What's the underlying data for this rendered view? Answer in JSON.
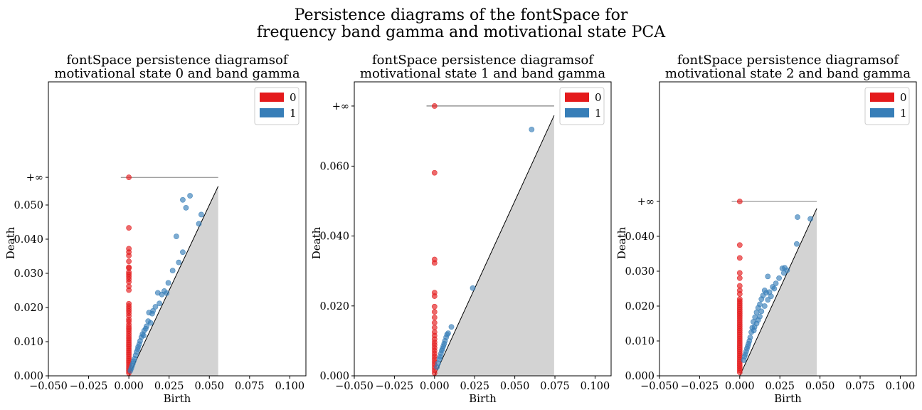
{
  "figure": {
    "title_line1": "Persistence diagrams of the fontSpace for",
    "title_line2": "frequency band gamma and motivational state PCA"
  },
  "chart_data": [
    {
      "type": "scatter",
      "title_line1": "fontSpace persistence diagramsof",
      "title_line2": "motivational state 0 and band gamma",
      "xlabel": "Birth",
      "ylabel": "Death",
      "xlim": [
        -0.05,
        0.11
      ],
      "x_ticks": [
        "−0.050",
        "−0.025",
        "0.000",
        "0.025",
        "0.050",
        "0.075",
        "0.100"
      ],
      "y_ticks": [
        "0.000",
        "0.010",
        "0.020",
        "0.030",
        "0.040",
        "0.050"
      ],
      "inf_label": "+∞",
      "inf_value": 0.0581,
      "diag_max": 0.0555,
      "legend": [
        "0",
        "1"
      ],
      "legend_position": "top-right",
      "grid": false,
      "colors": {
        "h0": "#e41a1c",
        "h1": "#377eb8"
      },
      "series": [
        {
          "name": "0",
          "infinite_births": [
            0.0
          ],
          "points": [
            [
              0,
              0.0433
            ],
            [
              0,
              0.0372
            ],
            [
              0,
              0.0362
            ],
            [
              0,
              0.0352
            ],
            [
              0,
              0.0335
            ],
            [
              0,
              0.0318
            ],
            [
              0,
              0.0315
            ],
            [
              0,
              0.0303
            ],
            [
              0,
              0.0297
            ],
            [
              0,
              0.029
            ],
            [
              0,
              0.0283
            ],
            [
              0,
              0.0275
            ],
            [
              0,
              0.0262
            ],
            [
              0,
              0.0251
            ],
            [
              0,
              0.0211
            ],
            [
              0,
              0.0204
            ],
            [
              0,
              0.0197
            ],
            [
              0,
              0.019
            ],
            [
              0,
              0.0183
            ],
            [
              0,
              0.0175
            ],
            [
              0,
              0.0165
            ],
            [
              0,
              0.0159
            ],
            [
              0,
              0.015
            ],
            [
              0,
              0.0143
            ],
            [
              0,
              0.0137
            ],
            [
              0,
              0.0131
            ],
            [
              0,
              0.0124
            ],
            [
              0,
              0.0117
            ],
            [
              0,
              0.011
            ],
            [
              0,
              0.0104
            ],
            [
              0,
              0.0098
            ],
            [
              0,
              0.0092
            ],
            [
              0,
              0.0086
            ],
            [
              0,
              0.008
            ],
            [
              0,
              0.0074
            ],
            [
              0,
              0.0068
            ],
            [
              0,
              0.0062
            ],
            [
              0,
              0.0056
            ],
            [
              0,
              0.005
            ],
            [
              0,
              0.0044
            ],
            [
              0,
              0.0038
            ],
            [
              0,
              0.0032
            ],
            [
              0,
              0.0026
            ],
            [
              0,
              0.002
            ],
            [
              0,
              0.0014
            ],
            [
              0,
              0.0008
            ]
          ]
        },
        {
          "name": "1",
          "points": [
            [
              0.038,
              0.0527
            ],
            [
              0.0335,
              0.0515
            ],
            [
              0.0355,
              0.0492
            ],
            [
              0.045,
              0.0472
            ],
            [
              0.0435,
              0.0445
            ],
            [
              0.0295,
              0.0408
            ],
            [
              0.0335,
              0.0362
            ],
            [
              0.031,
              0.0332
            ],
            [
              0.0272,
              0.0308
            ],
            [
              0.0245,
              0.0272
            ],
            [
              0.022,
              0.0248
            ],
            [
              0.018,
              0.0243
            ],
            [
              0.0235,
              0.0242
            ],
            [
              0.0205,
              0.0238
            ],
            [
              0.019,
              0.0212
            ],
            [
              0.0165,
              0.0202
            ],
            [
              0.015,
              0.019
            ],
            [
              0.0145,
              0.0182
            ],
            [
              0.0125,
              0.0185
            ],
            [
              0.012,
              0.016
            ],
            [
              0.0135,
              0.0155
            ],
            [
              0.011,
              0.0145
            ],
            [
              0.0095,
              0.0132
            ],
            [
              0.0105,
              0.0138
            ],
            [
              0.0085,
              0.0122
            ],
            [
              0.0078,
              0.0113
            ],
            [
              0.0092,
              0.0118
            ],
            [
              0.007,
              0.0102
            ],
            [
              0.0065,
              0.0093
            ],
            [
              0.0058,
              0.0085
            ],
            [
              0.0055,
              0.0078
            ],
            [
              0.0048,
              0.007
            ],
            [
              0.0042,
              0.006
            ],
            [
              0.0035,
              0.005
            ],
            [
              0.003,
              0.0043
            ],
            [
              0.0025,
              0.0036
            ],
            [
              0.002,
              0.0029
            ],
            [
              0.0015,
              0.0022
            ],
            [
              0.001,
              0.0015
            ]
          ]
        }
      ]
    },
    {
      "type": "scatter",
      "title_line1": "fontSpace persistence diagramsof",
      "title_line2": "motivational state 1 and band gamma",
      "xlabel": "Birth",
      "ylabel": "Death",
      "xlim": [
        -0.05,
        0.11
      ],
      "x_ticks": [
        "−0.050",
        "−0.025",
        "0.000",
        "0.025",
        "0.050",
        "0.075",
        "0.100"
      ],
      "y_ticks": [
        "0.000",
        "0.020",
        "0.040",
        "0.060"
      ],
      "inf_label": "+∞",
      "inf_value": 0.0772,
      "diag_max": 0.0745,
      "legend": [
        "0",
        "1"
      ],
      "legend_position": "top-right",
      "grid": false,
      "colors": {
        "h0": "#e41a1c",
        "h1": "#377eb8"
      },
      "series": [
        {
          "name": "0",
          "infinite_births": [
            0.0
          ],
          "points": [
            [
              0,
              0.0581
            ],
            [
              0,
              0.0333
            ],
            [
              0,
              0.0323
            ],
            [
              0,
              0.0238
            ],
            [
              0,
              0.0228
            ],
            [
              0,
              0.0198
            ],
            [
              0,
              0.0183
            ],
            [
              0,
              0.0167
            ],
            [
              0,
              0.0152
            ],
            [
              0,
              0.0138
            ],
            [
              0,
              0.0125
            ],
            [
              0,
              0.0115
            ],
            [
              0,
              0.0105
            ],
            [
              0,
              0.0096
            ],
            [
              0,
              0.0088
            ],
            [
              0,
              0.008
            ],
            [
              0,
              0.0072
            ],
            [
              0,
              0.0064
            ],
            [
              0,
              0.0056
            ],
            [
              0,
              0.0048
            ],
            [
              0,
              0.004
            ],
            [
              0,
              0.0032
            ],
            [
              0,
              0.0024
            ],
            [
              0,
              0.0016
            ],
            [
              0,
              0.0008
            ]
          ]
        },
        {
          "name": "1",
          "points": [
            [
              0.0605,
              0.0705
            ],
            [
              0.0238,
              0.0251
            ],
            [
              0.0105,
              0.014
            ],
            [
              0.0085,
              0.0122
            ],
            [
              0.0078,
              0.0118
            ],
            [
              0.0072,
              0.011
            ],
            [
              0.0065,
              0.01
            ],
            [
              0.006,
              0.0092
            ],
            [
              0.0055,
              0.0085
            ],
            [
              0.005,
              0.0078
            ],
            [
              0.0045,
              0.0072
            ],
            [
              0.004,
              0.0064
            ],
            [
              0.0035,
              0.0055
            ],
            [
              0.003,
              0.0048
            ],
            [
              0.0022,
              0.0036
            ],
            [
              0.0015,
              0.0025
            ]
          ]
        }
      ]
    },
    {
      "type": "scatter",
      "title_line1": "fontSpace persistence diagramsof",
      "title_line2": "motivational state 2 and band gamma",
      "xlabel": "Birth",
      "ylabel": "Death",
      "xlim": [
        -0.05,
        0.11
      ],
      "x_ticks": [
        "−0.050",
        "−0.025",
        "0.000",
        "0.025",
        "0.050",
        "0.075",
        "0.100"
      ],
      "y_ticks": [
        "0.000",
        "0.010",
        "0.020",
        "0.030",
        "0.040"
      ],
      "inf_label": "+∞",
      "inf_value": 0.05,
      "diag_max": 0.048,
      "legend": [
        "0",
        "1"
      ],
      "legend_position": "top-right",
      "grid": false,
      "colors": {
        "h0": "#e41a1c",
        "h1": "#377eb8"
      },
      "series": [
        {
          "name": "0",
          "infinite_births": [
            0.0
          ],
          "points": [
            [
              0,
              0.0375
            ],
            [
              0,
              0.0338
            ],
            [
              0,
              0.0295
            ],
            [
              0,
              0.028
            ],
            [
              0,
              0.0258
            ],
            [
              0,
              0.0245
            ],
            [
              0,
              0.0235
            ],
            [
              0,
              0.022
            ],
            [
              0,
              0.0214
            ],
            [
              0,
              0.0208
            ],
            [
              0,
              0.0202
            ],
            [
              0,
              0.0196
            ],
            [
              0,
              0.019
            ],
            [
              0,
              0.0184
            ],
            [
              0,
              0.0178
            ],
            [
              0,
              0.0172
            ],
            [
              0,
              0.0166
            ],
            [
              0,
              0.016
            ],
            [
              0,
              0.0154
            ],
            [
              0,
              0.0148
            ],
            [
              0,
              0.0142
            ],
            [
              0,
              0.0136
            ],
            [
              0,
              0.013
            ],
            [
              0,
              0.0124
            ],
            [
              0,
              0.0118
            ],
            [
              0,
              0.0112
            ],
            [
              0,
              0.0106
            ],
            [
              0,
              0.01
            ],
            [
              0,
              0.0094
            ],
            [
              0,
              0.0088
            ],
            [
              0,
              0.0082
            ],
            [
              0,
              0.0076
            ],
            [
              0,
              0.007
            ],
            [
              0,
              0.0064
            ],
            [
              0,
              0.0058
            ],
            [
              0,
              0.0052
            ],
            [
              0,
              0.0046
            ],
            [
              0,
              0.004
            ],
            [
              0,
              0.0034
            ],
            [
              0,
              0.0028
            ],
            [
              0,
              0.0022
            ],
            [
              0,
              0.0016
            ],
            [
              0,
              0.001
            ]
          ]
        },
        {
          "name": "1",
          "points": [
            [
              0.036,
              0.0455
            ],
            [
              0.044,
              0.045
            ],
            [
              0.0355,
              0.0378
            ],
            [
              0.028,
              0.031
            ],
            [
              0.0265,
              0.0308
            ],
            [
              0.0295,
              0.0303
            ],
            [
              0.0275,
              0.0295
            ],
            [
              0.0245,
              0.028
            ],
            [
              0.0225,
              0.0265
            ],
            [
              0.0205,
              0.0255
            ],
            [
              0.0215,
              0.025
            ],
            [
              0.0185,
              0.024
            ],
            [
              0.0165,
              0.0238
            ],
            [
              0.0155,
              0.0245
            ],
            [
              0.0175,
              0.0285
            ],
            [
              0.0195,
              0.0228
            ],
            [
              0.0145,
              0.023
            ],
            [
              0.0175,
              0.0218
            ],
            [
              0.0135,
              0.022
            ],
            [
              0.0125,
              0.0205
            ],
            [
              0.0155,
              0.02
            ],
            [
              0.0115,
              0.0195
            ],
            [
              0.0135,
              0.0185
            ],
            [
              0.0105,
              0.0182
            ],
            [
              0.0125,
              0.017
            ],
            [
              0.0095,
              0.0168
            ],
            [
              0.0115,
              0.016
            ],
            [
              0.0085,
              0.0155
            ],
            [
              0.0105,
              0.015
            ],
            [
              0.0092,
              0.014
            ],
            [
              0.0078,
              0.0138
            ],
            [
              0.0088,
              0.013
            ],
            [
              0.0072,
              0.0125
            ],
            [
              0.0065,
              0.011
            ],
            [
              0.006,
              0.01
            ],
            [
              0.0055,
              0.0092
            ],
            [
              0.005,
              0.0085
            ],
            [
              0.0045,
              0.0078
            ],
            [
              0.004,
              0.007
            ],
            [
              0.0035,
              0.0062
            ],
            [
              0.003,
              0.0055
            ],
            [
              0.0025,
              0.0045
            ]
          ]
        }
      ]
    }
  ]
}
